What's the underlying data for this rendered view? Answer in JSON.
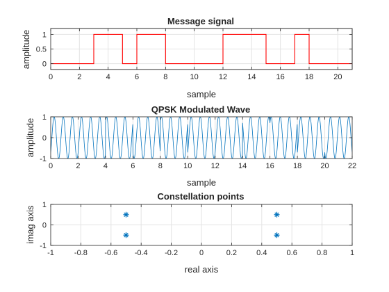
{
  "figure": {
    "background": "#ffffff"
  },
  "chart_data": [
    {
      "type": "line",
      "title": "Message signal",
      "xlabel": "sample",
      "ylabel": "amplitude",
      "xlim": [
        0,
        21
      ],
      "ylim": [
        -0.2,
        1.2
      ],
      "xticks": [
        0,
        2,
        4,
        6,
        8,
        10,
        12,
        14,
        16,
        18,
        20
      ],
      "yticks": [
        0,
        0.5,
        1
      ],
      "ytick_labels": [
        "0",
        "0.5",
        "1"
      ],
      "grid": true,
      "line_style": "step",
      "color": "#ff0000",
      "x": [
        0,
        3,
        3,
        5,
        5,
        6,
        6,
        8,
        8,
        12,
        12,
        15,
        15,
        17,
        17,
        18,
        18,
        21
      ],
      "y": [
        0,
        0,
        1,
        1,
        0,
        0,
        1,
        1,
        0,
        0,
        1,
        1,
        0,
        0,
        1,
        1,
        0,
        0
      ],
      "bits": [
        0,
        0,
        0,
        1,
        1,
        0,
        1,
        1,
        0,
        0,
        0,
        0,
        1,
        1,
        1,
        0,
        0,
        1,
        0,
        0,
        0
      ]
    },
    {
      "type": "line",
      "title": "QPSK Modulated Wave",
      "xlabel": "sample",
      "ylabel": "amplitude",
      "xlim": [
        0,
        22
      ],
      "ylim": [
        -1,
        1
      ],
      "xticks": [
        0,
        2,
        4,
        6,
        8,
        10,
        12,
        14,
        16,
        18,
        20,
        22
      ],
      "yticks": [
        -1,
        0,
        1
      ],
      "ytick_labels": [
        "-1",
        "0",
        "1"
      ],
      "grid": true,
      "color": "#0072bd",
      "cycles_per_sample": 1.5,
      "symbol_phases_deg": [
        225,
        225,
        315,
        135,
        315,
        225,
        225,
        45,
        315,
        225,
        135
      ]
    },
    {
      "type": "scatter",
      "title": "Constellation points",
      "xlabel": "real axis",
      "ylabel": "imag axis",
      "xlim": [
        -1,
        1
      ],
      "ylim": [
        -1,
        1
      ],
      "xticks": [
        -1,
        -0.8,
        -0.6,
        -0.4,
        -0.2,
        0,
        0.2,
        0.4,
        0.6,
        0.8,
        1
      ],
      "yticks": [
        -1,
        0,
        1
      ],
      "ytick_labels": [
        "-1",
        "0",
        "1"
      ],
      "grid": true,
      "marker": "*",
      "color": "#0072bd",
      "points": [
        {
          "x": -0.5,
          "y": 0.5
        },
        {
          "x": -0.5,
          "y": -0.5
        },
        {
          "x": 0.5,
          "y": 0.5
        },
        {
          "x": 0.5,
          "y": -0.5
        }
      ]
    }
  ]
}
